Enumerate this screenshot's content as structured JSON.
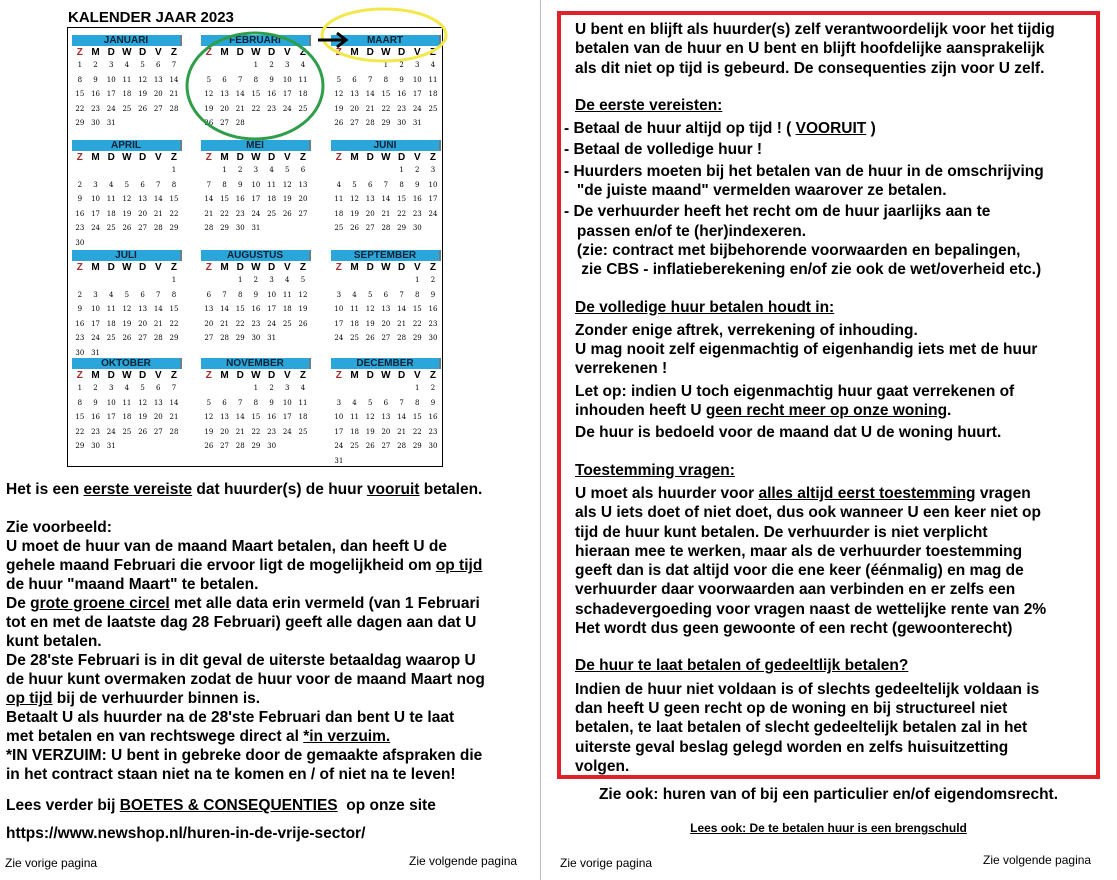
{
  "calendar": {
    "title": "KALENDER JAAR  2023",
    "weekdays": [
      "Z",
      "M",
      "D",
      "W",
      "D",
      "V",
      "Z"
    ],
    "months": [
      {
        "name": "JANUARI",
        "start": 0,
        "days": 31
      },
      {
        "name": "FEBRUARI",
        "start": 3,
        "days": 28
      },
      {
        "name": "MAART",
        "start": 3,
        "days": 31
      },
      {
        "name": "APRIL",
        "start": 6,
        "days": 30
      },
      {
        "name": "MEI",
        "start": 1,
        "days": 31
      },
      {
        "name": "JUNI",
        "start": 4,
        "days": 30
      },
      {
        "name": "JULI",
        "start": 6,
        "days": 31
      },
      {
        "name": "AUGUSTUS",
        "start": 2,
        "days": 31
      },
      {
        "name": "SEPTEMBER",
        "start": 5,
        "days": 30
      },
      {
        "name": "OKTOBER",
        "start": 0,
        "days": 31
      },
      {
        "name": "NOVEMBER",
        "start": 3,
        "days": 30
      },
      {
        "name": "DECEMBER",
        "start": 5,
        "days": 31
      }
    ],
    "colors": {
      "month_bar": "#2aa6da",
      "sunday": "#a52a2a",
      "green_circle": "#2e9e48",
      "yellow_circle": "#f3e84a"
    }
  },
  "left": {
    "lines": [
      [
        {
          "t": "Het is een "
        },
        {
          "t": "eerste vereiste",
          "u": true
        },
        {
          "t": " dat huurder(s) de huur "
        },
        {
          "t": "vooruit",
          "u": true
        },
        {
          "t": " betalen."
        }
      ],
      [],
      [
        {
          "t": "Zie voorbeeld:"
        }
      ],
      [
        {
          "t": "U moet de huur van de maand Maart betalen, dan heeft U de"
        }
      ],
      [
        {
          "t": "gehele maand Februari die ervoor ligt de mogelijkheid om "
        },
        {
          "t": "op tijd",
          "u": true
        }
      ],
      [
        {
          "t": "de huur \"maand Maart\" te betalen."
        }
      ],
      [
        {
          "t": "De "
        },
        {
          "t": "grote groene circel",
          "u": true
        },
        {
          "t": " met alle data erin vermeld (van 1 Februari"
        }
      ],
      [
        {
          "t": "tot en met de laatste dag 28 Februari) geeft alle dagen aan dat U"
        }
      ],
      [
        {
          "t": "kunt betalen."
        }
      ],
      [
        {
          "t": "De 28'ste Februari is in dit geval de uiterste betaaldag waarop U"
        }
      ],
      [
        {
          "t": "de huur kunt overmaken zodat de huur voor de maand Maart nog"
        }
      ],
      [
        {
          "t": "op tijd",
          "u": true
        },
        {
          "t": " bij de verhuurder binnen is."
        }
      ],
      [
        {
          "t": "Betaalt U als huurder na de 28'ste Februari dan bent U te laat"
        }
      ],
      [
        {
          "t": "met betalen en van rechtswege direct al "
        },
        {
          "t": "*in verzuim.",
          "u": true
        }
      ],
      [
        {
          "t": "*IN VERZUIM: U bent in gebreke door de gemaakte afspraken die"
        }
      ],
      [
        {
          "t": "in het contract staan niet na te komen en / of niet na te leven!"
        }
      ]
    ],
    "read_more": [
      {
        "t": "Lees verder bij "
      },
      {
        "t": "BOETES & CONSEQUENTIES",
        "u": true
      },
      {
        "t": "  op onze site"
      }
    ],
    "url": "https://www.newshop.nl/huren-in-de-vrije-sector/",
    "prev": "Zie vorige pagina",
    "next": "Zie volgende pagina"
  },
  "right": {
    "intro": [
      "U bent en blijft als huurder(s) zelf verantwoordelijk voor het tijdig",
      "betalen van de huur en U bent en blijft hoofdelijke aansprakelijk",
      "als dit niet op tijd is gebeurd. De consequenties zijn voor U zelf."
    ],
    "sections": [
      {
        "heading": "De eerste vereisten:",
        "lines": [
          [
            {
              "t": "- Betaal de huur altijd op tijd ! ( "
            },
            {
              "t": "VOORUIT",
              "u": true
            },
            {
              "t": " )"
            }
          ],
          [
            {
              "t": "- Betaal de volledige huur !"
            }
          ],
          [
            {
              "t": "- Huurders moeten bij het betalen van de huur in de omschrijving"
            }
          ],
          [
            {
              "t": "   \"de juiste maand\" vermelden waarover ze betalen."
            }
          ],
          [
            {
              "t": "- De verhuurder heeft het recht om de huur jaarlijks aan te"
            }
          ],
          [
            {
              "t": "   passen en/of te (her)indexeren."
            }
          ],
          [
            {
              "t": "   (zie: contract met bijbehorende voorwaarden en bepalingen,"
            }
          ],
          [
            {
              "t": "    zie CBS - inflatieberekening en/of zie ook de wet/overheid etc.)"
            }
          ]
        ]
      },
      {
        "heading": "De volledige huur betalen houdt in:",
        "lines": [
          [
            {
              "t": "Zonder enige aftrek, verrekening of inhouding."
            }
          ],
          [
            {
              "t": "U mag nooit zelf eigenmachtig of eigenhandig iets met de huur"
            }
          ],
          [
            {
              "t": "verrekenen !"
            }
          ],
          [
            {
              "t": "Let op: indien U toch eigenmachtig huur gaat verrekenen of"
            }
          ],
          [
            {
              "t": "inhouden heeft U "
            },
            {
              "t": "geen recht meer op onze woning",
              "u": true
            },
            {
              "t": "."
            }
          ],
          [
            {
              "t": "De huur is bedoeld voor de maand dat U de woning huurt."
            }
          ]
        ]
      },
      {
        "heading": "Toestemming vragen:",
        "lines": [
          [
            {
              "t": "U moet als huurder voor "
            },
            {
              "t": "alles altijd eerst toestemming",
              "u": true
            },
            {
              "t": " vragen"
            }
          ],
          [
            {
              "t": "als U iets doet of niet doet, dus ook wanneer U een keer niet op"
            }
          ],
          [
            {
              "t": "tijd de huur kunt betalen. De verhuurder is niet verplicht"
            }
          ],
          [
            {
              "t": "hieraan mee te werken, maar als de verhuurder toestemming"
            }
          ],
          [
            {
              "t": "geeft dan is dat altijd voor die ene keer (éénmalig) en mag de"
            }
          ],
          [
            {
              "t": "verhuurder daar voorwaarden aan verbinden en er zelfs een"
            }
          ],
          [
            {
              "t": "schadevergoeding voor vragen naast de wettelijke rente van 2%"
            }
          ],
          [
            {
              "t": "Het wordt dus geen gewoonte of een recht (gewoonterecht)"
            }
          ]
        ]
      },
      {
        "heading": "De huur te laat betalen of gedeeltlijk betalen?",
        "lines": [
          [
            {
              "t": "Indien de huur niet voldaan is of slechts gedeeltelijk voldaan is"
            }
          ],
          [
            {
              "t": "dan heeft U geen recht op de woning en bij structureel niet"
            }
          ],
          [
            {
              "t": "betalen, te laat betalen of slecht gedeeltelijk betalen zal in het"
            }
          ],
          [
            {
              "t": "uiterste geval beslag gelegd worden en zelfs huisuitzetting"
            }
          ],
          [
            {
              "t": "volgen."
            }
          ]
        ]
      }
    ],
    "see_also": "Zie ook: huren van of bij een particulier en/of eigendomsrecht.",
    "read_also": "Lees ook: De te betalen huur is een brengschuld",
    "prev": "Zie vorige pagina",
    "next": "Zie volgende pagina",
    "border_color": "#e0202a"
  }
}
